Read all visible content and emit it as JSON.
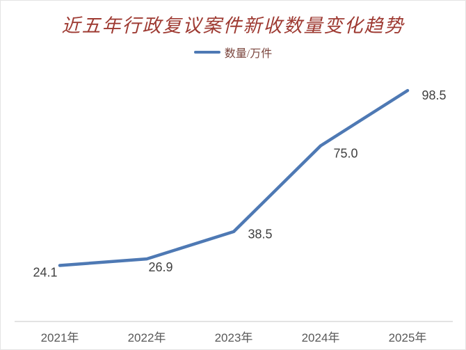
{
  "chart_data": {
    "type": "line",
    "title": "近五年行政复议案件新收数量变化趋势",
    "categories": [
      "2021年",
      "2022年",
      "2023年",
      "2024年",
      "2025年"
    ],
    "series": [
      {
        "name": "数量/万件",
        "values": [
          24.1,
          26.9,
          38.5,
          75.0,
          98.5
        ],
        "labels": [
          "24.1",
          "26.9",
          "38.5",
          "75.0",
          "98.5"
        ]
      }
    ],
    "xlabel": "",
    "ylabel": "",
    "ylim": [
      0,
      100
    ],
    "grid": false,
    "legend_position": "top-center",
    "colors": {
      "series_line": "#4e79b4",
      "title_text": "#9e3a32",
      "legend_text": "#7a443c",
      "data_label": "#3f3f3f",
      "axis_label": "#595959",
      "axis_line": "#dadada",
      "background": "#ffffff"
    }
  }
}
